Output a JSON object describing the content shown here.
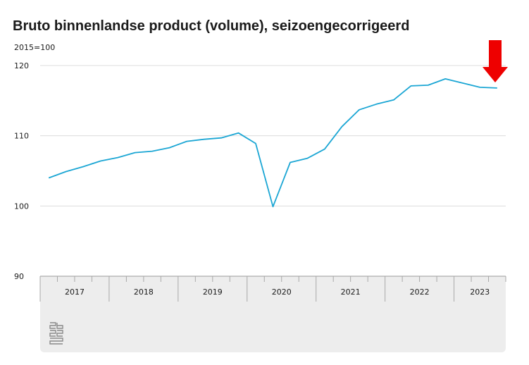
{
  "chart_data": {
    "type": "line",
    "title": "Bruto binnenlandse product (volume), seizoengecorrigeerd",
    "unit_label": "2015=100",
    "ylim": [
      90,
      120
    ],
    "yticks": [
      "120",
      "110",
      "100",
      "90"
    ],
    "ytick_values": [
      120,
      110,
      100,
      90
    ],
    "year_labels": [
      "2017",
      "2018",
      "2019",
      "2020",
      "2021",
      "2022",
      "2023"
    ],
    "grid": true,
    "series": [
      {
        "color": "#1ba6d4",
        "x": [
          "2017 K1",
          "2017 K2",
          "2017 K3",
          "2017 K4",
          "2018 K1",
          "2018 K2",
          "2018 K3",
          "2018 K4",
          "2019 K1",
          "2019 K2",
          "2019 K3",
          "2019 K4",
          "2020 K1",
          "2020 K2",
          "2020 K3",
          "2020 K4",
          "2021 K1",
          "2021 K2",
          "2021 K3",
          "2021 K4",
          "2022 K1",
          "2022 K2",
          "2022 K3",
          "2022 K4",
          "2023 K1",
          "2023 K2",
          "2023 K3"
        ],
        "values": [
          104.0,
          104.9,
          105.6,
          106.4,
          106.9,
          107.6,
          107.8,
          108.3,
          109.2,
          109.5,
          109.7,
          110.4,
          108.9,
          99.9,
          106.2,
          106.8,
          108.1,
          111.3,
          113.7,
          114.5,
          115.1,
          117.1,
          117.2,
          118.1,
          117.5,
          116.9,
          116.8
        ]
      }
    ],
    "annotation": {
      "type": "arrow",
      "color": "#ee0000",
      "points_to": "2023 K3"
    }
  }
}
